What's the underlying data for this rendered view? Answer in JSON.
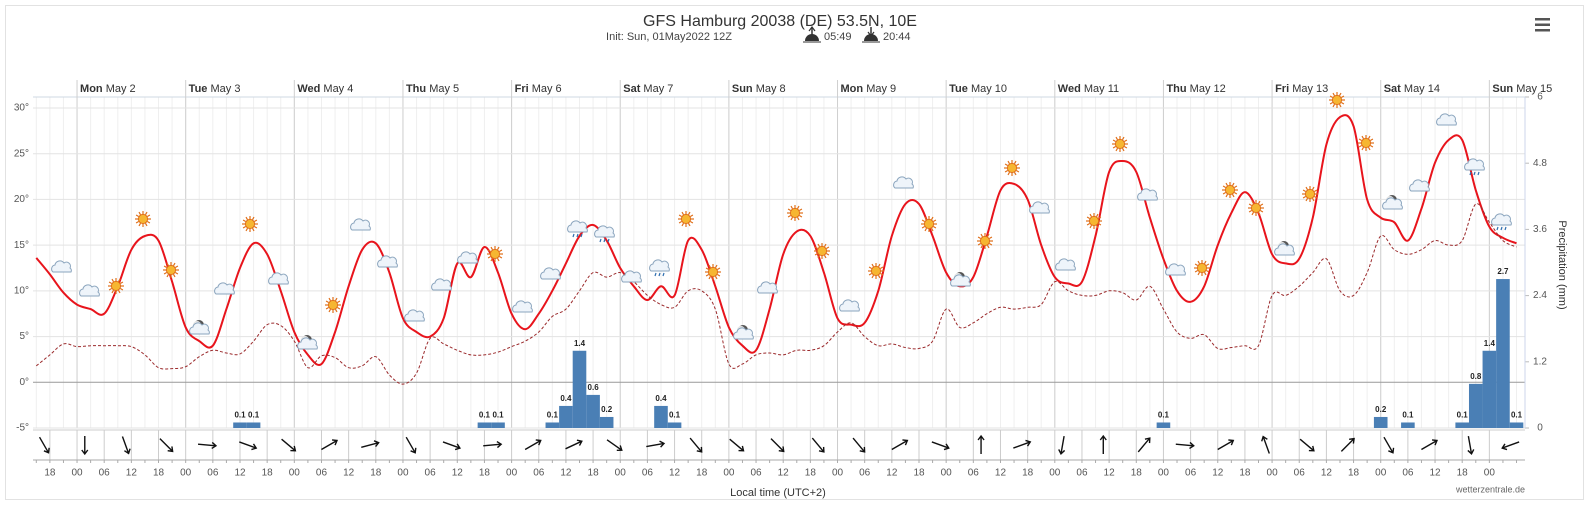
{
  "chart_data": {
    "type": "meteogram",
    "title": "GFS Hamburg 20038 (DE) 53.5N, 10E",
    "subtitle": "Init: Sun, 01May2022 12Z",
    "sunrise": "05:49",
    "sunset": "20:44",
    "x_label": "Local time (UTC+2)",
    "y2_label": "Precipitation (mm)",
    "credit": "wetterzentrale.de",
    "days": [
      {
        "weekday": "Mon",
        "date": "May 2"
      },
      {
        "weekday": "Tue",
        "date": "May 3"
      },
      {
        "weekday": "Wed",
        "date": "May 4"
      },
      {
        "weekday": "Thu",
        "date": "May 5"
      },
      {
        "weekday": "Fri",
        "date": "May 6"
      },
      {
        "weekday": "Sat",
        "date": "May 7"
      },
      {
        "weekday": "Sun",
        "date": "May 8"
      },
      {
        "weekday": "Mon",
        "date": "May 9"
      },
      {
        "weekday": "Tue",
        "date": "May 10"
      },
      {
        "weekday": "Wed",
        "date": "May 11"
      },
      {
        "weekday": "Thu",
        "date": "May 12"
      },
      {
        "weekday": "Fri",
        "date": "May 13"
      },
      {
        "weekday": "Sat",
        "date": "May 14"
      },
      {
        "weekday": "Sun",
        "date": "May 15"
      }
    ],
    "categories": [
      null,
      "18",
      null,
      "00",
      null,
      "06",
      null,
      "12",
      null,
      "18",
      null,
      "00",
      null,
      "06",
      null,
      "12",
      null,
      "18",
      null,
      "00",
      null,
      "06",
      null,
      "12",
      null,
      "18",
      null,
      "00",
      null,
      "06",
      null,
      "12",
      null,
      "18",
      null,
      "00",
      null,
      "06",
      null,
      "12",
      null,
      "18",
      null,
      "00",
      null,
      "06",
      null,
      "12",
      null,
      "18",
      null,
      "00",
      null,
      "06",
      null,
      "12",
      null,
      "18",
      null,
      "00",
      null,
      "06",
      null,
      "12",
      null,
      "18",
      null,
      "00",
      null,
      "06",
      null,
      "12",
      null,
      "18",
      null,
      "00",
      null,
      "06",
      null,
      "12",
      null,
      "18",
      null,
      "00",
      null,
      "06",
      null,
      "12",
      null,
      "18",
      null,
      "00",
      null,
      "06",
      null,
      "12",
      null,
      "18",
      null,
      "00",
      null,
      "06",
      null,
      "12",
      null,
      "18",
      null,
      "00",
      null,
      null
    ],
    "series": [
      {
        "kind": "line",
        "color": "#e8141c",
        "dashed": false,
        "values": [
          13.6,
          11.8,
          9.8,
          8.5,
          8,
          7.5,
          10.5,
          14.5,
          16,
          15.5,
          11,
          6,
          4.5,
          4,
          8,
          12.5,
          15.2,
          14,
          10,
          5.5,
          3,
          2,
          5.5,
          10.5,
          14.5,
          15.2,
          12,
          7,
          5.5,
          5,
          7,
          13,
          11.5,
          14.8,
          12,
          7.5,
          5.8,
          7.5,
          10,
          13,
          16,
          17.2,
          15.5,
          12.5,
          10.5,
          9,
          10.5,
          9.5,
          15.5,
          14.5,
          10.5,
          6,
          4,
          3.5,
          8,
          14,
          16.5,
          16,
          12,
          7,
          6.3,
          6.5,
          10,
          16,
          19.5,
          19.5,
          16,
          12,
          10.5,
          11.5,
          16,
          21,
          21.7,
          20,
          15,
          11.5,
          10.8,
          11,
          16,
          23,
          24.2,
          23,
          18,
          13.5,
          10,
          8.8,
          10.5,
          15,
          18.5,
          20.8,
          18.5,
          14,
          13,
          13.5,
          18,
          26,
          29,
          28,
          20,
          18,
          17.5,
          15.5,
          19,
          24,
          26.5,
          26.5,
          21,
          17,
          15.8,
          15.2
        ]
      },
      {
        "kind": "line",
        "color": "#9b2a2c",
        "dashed": true,
        "values": [
          1.8,
          3,
          4.2,
          3.9,
          4,
          4,
          4,
          3.9,
          3,
          1.6,
          1.5,
          1.7,
          2.8,
          3.5,
          3.2,
          3.1,
          4.5,
          6.3,
          6.2,
          4.5,
          1.6,
          2.9,
          2.7,
          1.6,
          1.8,
          2.8,
          0.8,
          -0.2,
          1,
          4.8,
          4.2,
          3.5,
          3,
          3,
          3.3,
          3.9,
          4.5,
          5.5,
          7.2,
          8,
          10,
          12,
          11.5,
          12,
          11,
          9.5,
          8.5,
          8.2,
          10,
          10,
          8,
          2,
          2,
          3,
          3.2,
          3,
          3.5,
          3.5,
          4,
          5.5,
          6.5,
          5,
          4,
          4.2,
          3.8,
          3.7,
          4.5,
          8,
          6,
          6.5,
          7.5,
          8.2,
          8,
          8.2,
          8.5,
          11,
          10,
          9.5,
          9.5,
          10,
          9.8,
          9,
          10.5,
          8,
          5.5,
          4.8,
          5.2,
          3.7,
          3.8,
          4,
          4,
          9.5,
          9.5,
          10.5,
          12,
          13.5,
          10,
          9.5,
          12,
          16,
          14.5,
          14,
          14.5,
          15.5,
          15,
          15.5,
          19.5,
          17.5,
          15.5,
          14.8
        ]
      },
      {
        "kind": "bar",
        "axis": "y2",
        "color": "#4a7fb5",
        "values": [
          null,
          null,
          null,
          null,
          null,
          null,
          null,
          null,
          null,
          null,
          null,
          null,
          null,
          null,
          null,
          0.1,
          0.1,
          null,
          null,
          null,
          null,
          null,
          null,
          null,
          null,
          null,
          null,
          null,
          null,
          null,
          null,
          null,
          null,
          0.1,
          0.1,
          null,
          null,
          null,
          0.1,
          0.4,
          1.4,
          0.6,
          0.2,
          null,
          null,
          null,
          0.4,
          0.1,
          null,
          null,
          null,
          null,
          null,
          null,
          null,
          null,
          null,
          null,
          null,
          null,
          null,
          null,
          null,
          null,
          null,
          null,
          null,
          null,
          null,
          null,
          null,
          null,
          null,
          null,
          null,
          null,
          null,
          null,
          null,
          null,
          null,
          null,
          null,
          0.1,
          null,
          null,
          null,
          null,
          null,
          null,
          null,
          null,
          null,
          null,
          null,
          null,
          null,
          null,
          null,
          0.2,
          null,
          0.1,
          null,
          null,
          null,
          0.1,
          0.8,
          1.4,
          2.7,
          0.1
        ]
      }
    ],
    "wind_direction": [
      150,
      180,
      160,
      135,
      95,
      110,
      130,
      60,
      75,
      150,
      110,
      85,
      60,
      65,
      125,
      80,
      140,
      130,
      135,
      140,
      140,
      60,
      110,
      0,
      70,
      190,
      0,
      40,
      95,
      60,
      340,
      130,
      45,
      150,
      60,
      170,
      250
    ],
    "ylim": [
      -5,
      31.2
    ],
    "yticks": [
      {
        "value": -5,
        "label": "-5°"
      },
      {
        "value": 0,
        "label": "0°"
      },
      {
        "value": 5,
        "label": "5°"
      },
      {
        "value": 10,
        "label": "10°"
      },
      {
        "value": 15,
        "label": "15°"
      },
      {
        "value": 20,
        "label": "20°"
      },
      {
        "value": 25,
        "label": "25°"
      },
      {
        "value": 30,
        "label": "30°"
      }
    ],
    "y2lim": [
      0,
      6
    ],
    "y2ticks": [
      0,
      1.2,
      2.4,
      3.6,
      4.8,
      6
    ],
    "grid": true
  }
}
